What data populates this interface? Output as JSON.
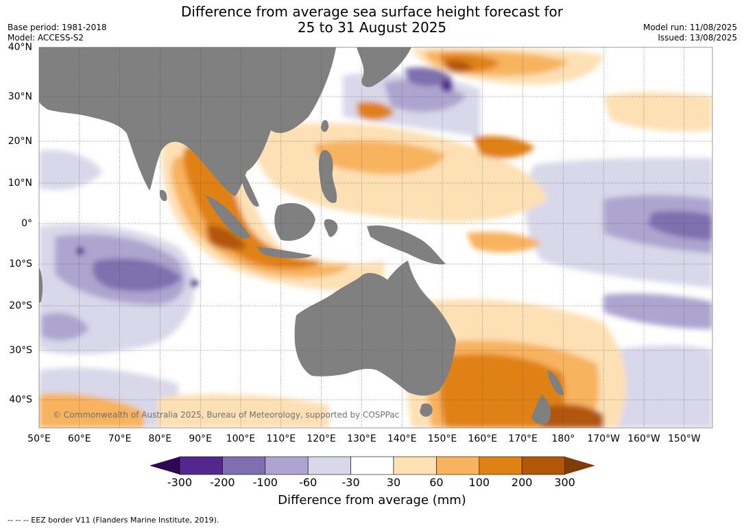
{
  "title": {
    "line1": "Difference from average sea surface height forecast for",
    "line2": "25 to 31 August 2025"
  },
  "meta": {
    "base_period": "Base period: 1981-2018",
    "model": "Model: ACCESS-S2",
    "model_run": "Model run: 11/08/2025",
    "issued": "Issued: 13/08/2025"
  },
  "lat_labels": [
    "40°N",
    "30°N",
    "20°N",
    "10°N",
    "0°",
    "10°S",
    "20°S",
    "30°S",
    "40°S"
  ],
  "lon_labels": [
    "50°E",
    "60°E",
    "70°E",
    "80°E",
    "90°E",
    "100°E",
    "110°E",
    "120°E",
    "130°E",
    "140°E",
    "150°E",
    "160°E",
    "170°E",
    "180°",
    "170°W",
    "160°W",
    "150°W"
  ],
  "watermark": "© Commonwealth of Australia 2025, Bureau of Meteorology, supported by COSPPac",
  "colorbar": {
    "ticks": [
      "-300",
      "-200",
      "-100",
      "-60",
      "-30",
      "30",
      "60",
      "100",
      "200",
      "300"
    ],
    "title": "Difference from average (mm)",
    "colors": {
      "below_-300": "#2e0854",
      "-300_-200": "#54278f",
      "-200_-100": "#7f6fae",
      "-100_-60": "#ada5cf",
      "-60_-30": "#d8d8ea",
      "-30_30": "#ffffff",
      "30_60": "#fee0b5",
      "60_100": "#f8b35e",
      "100_200": "#e08114",
      "200_300": "#b25707",
      "above_300": "#7f3b08"
    }
  },
  "map_colors": {
    "land": "#808080"
  },
  "footer": "--  --  -- EEZ border V11 (Flanders Marine Institute, 2019)."
}
